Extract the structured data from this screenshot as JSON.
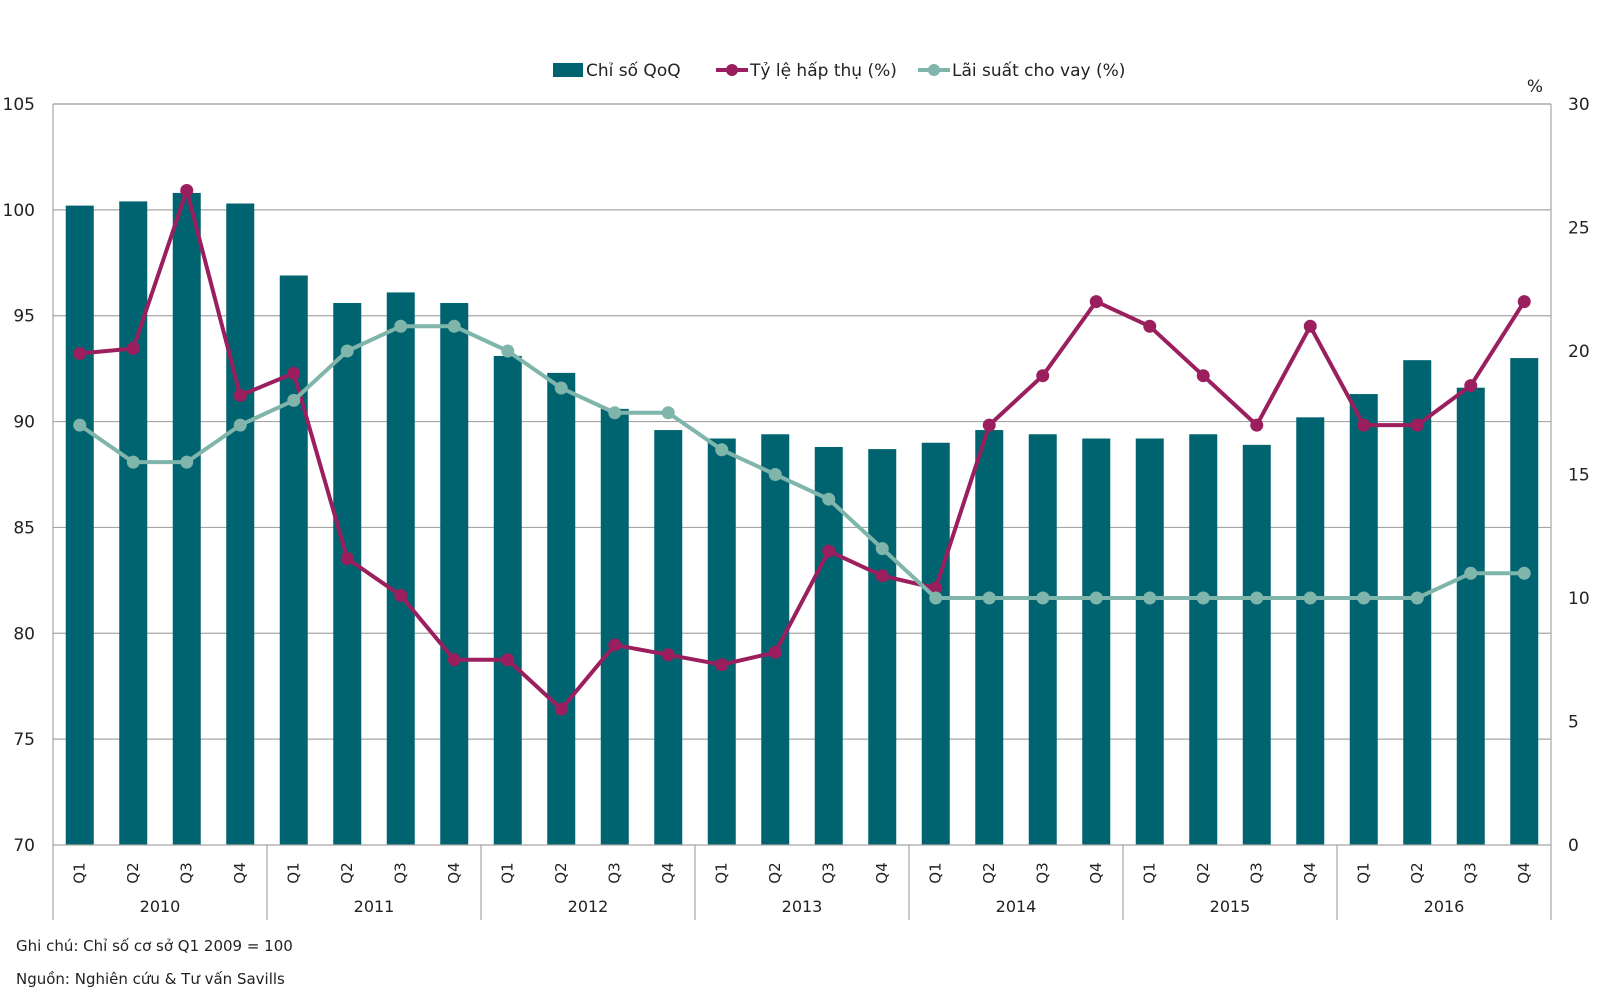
{
  "chart_data": {
    "type": "bar",
    "title": "",
    "legend_position": "top-center",
    "colors": {
      "bars": "#006470",
      "absorption": "#9b1f5e",
      "lending": "#7fb5aa",
      "grid": "#a6a6a6"
    },
    "legend": [
      {
        "name": "Chỉ số QoQ",
        "kind": "bar"
      },
      {
        "name": "Tỷ lệ hấp thụ (%)",
        "kind": "line"
      },
      {
        "name": "Lãi suất cho vay (%)",
        "kind": "line"
      }
    ],
    "years": [
      "2010",
      "2011",
      "2012",
      "2013",
      "2014",
      "2015",
      "2016"
    ],
    "quarters": [
      "Q1",
      "Q2",
      "Q3",
      "Q4"
    ],
    "left_axis": {
      "min": 70,
      "max": 105,
      "step": 5,
      "ticks": [
        "70",
        "75",
        "80",
        "85",
        "90",
        "95",
        "100",
        "105"
      ]
    },
    "right_axis": {
      "label": "%",
      "min": 0,
      "max": 30,
      "step": 5,
      "ticks": [
        "0",
        "5",
        "10",
        "15",
        "20",
        "25",
        "30"
      ]
    },
    "grid": true,
    "series": [
      {
        "name": "Chỉ số QoQ",
        "type": "bar",
        "axis": "left",
        "values": [
          100.2,
          100.4,
          100.8,
          100.3,
          96.9,
          95.6,
          96.1,
          95.6,
          93.1,
          92.3,
          90.6,
          89.6,
          89.2,
          89.4,
          88.8,
          88.7,
          89.0,
          89.6,
          89.4,
          89.2,
          89.2,
          89.4,
          88.9,
          90.2,
          91.3,
          92.9,
          91.6,
          93.0
        ]
      },
      {
        "name": "Tỷ lệ hấp thụ (%)",
        "type": "line",
        "axis": "right",
        "values": [
          19.9,
          20.1,
          26.5,
          18.2,
          19.1,
          11.6,
          10.1,
          7.5,
          7.5,
          5.5,
          8.1,
          7.7,
          7.3,
          7.8,
          11.9,
          10.9,
          10.4,
          17.0,
          19.0,
          22.0,
          21.0,
          19.0,
          17.0,
          21.0,
          17.0,
          17.0,
          18.6,
          22.0
        ]
      },
      {
        "name": "Lãi suất cho vay (%)",
        "type": "line",
        "axis": "right",
        "values": [
          17.0,
          15.5,
          15.5,
          17.0,
          18.0,
          20.0,
          21.0,
          21.0,
          20.0,
          18.5,
          17.5,
          17.5,
          16.0,
          15.0,
          14.0,
          12.0,
          10.0,
          10.0,
          10.0,
          10.0,
          10.0,
          10.0,
          10.0,
          10.0,
          10.0,
          10.0,
          11.0,
          11.0
        ]
      }
    ]
  },
  "notes": {
    "note": "Ghi chú: Chỉ số cơ sở Q1 2009 = 100",
    "source": "Nguồn: Nghiên cứu & Tư vấn Savills"
  }
}
